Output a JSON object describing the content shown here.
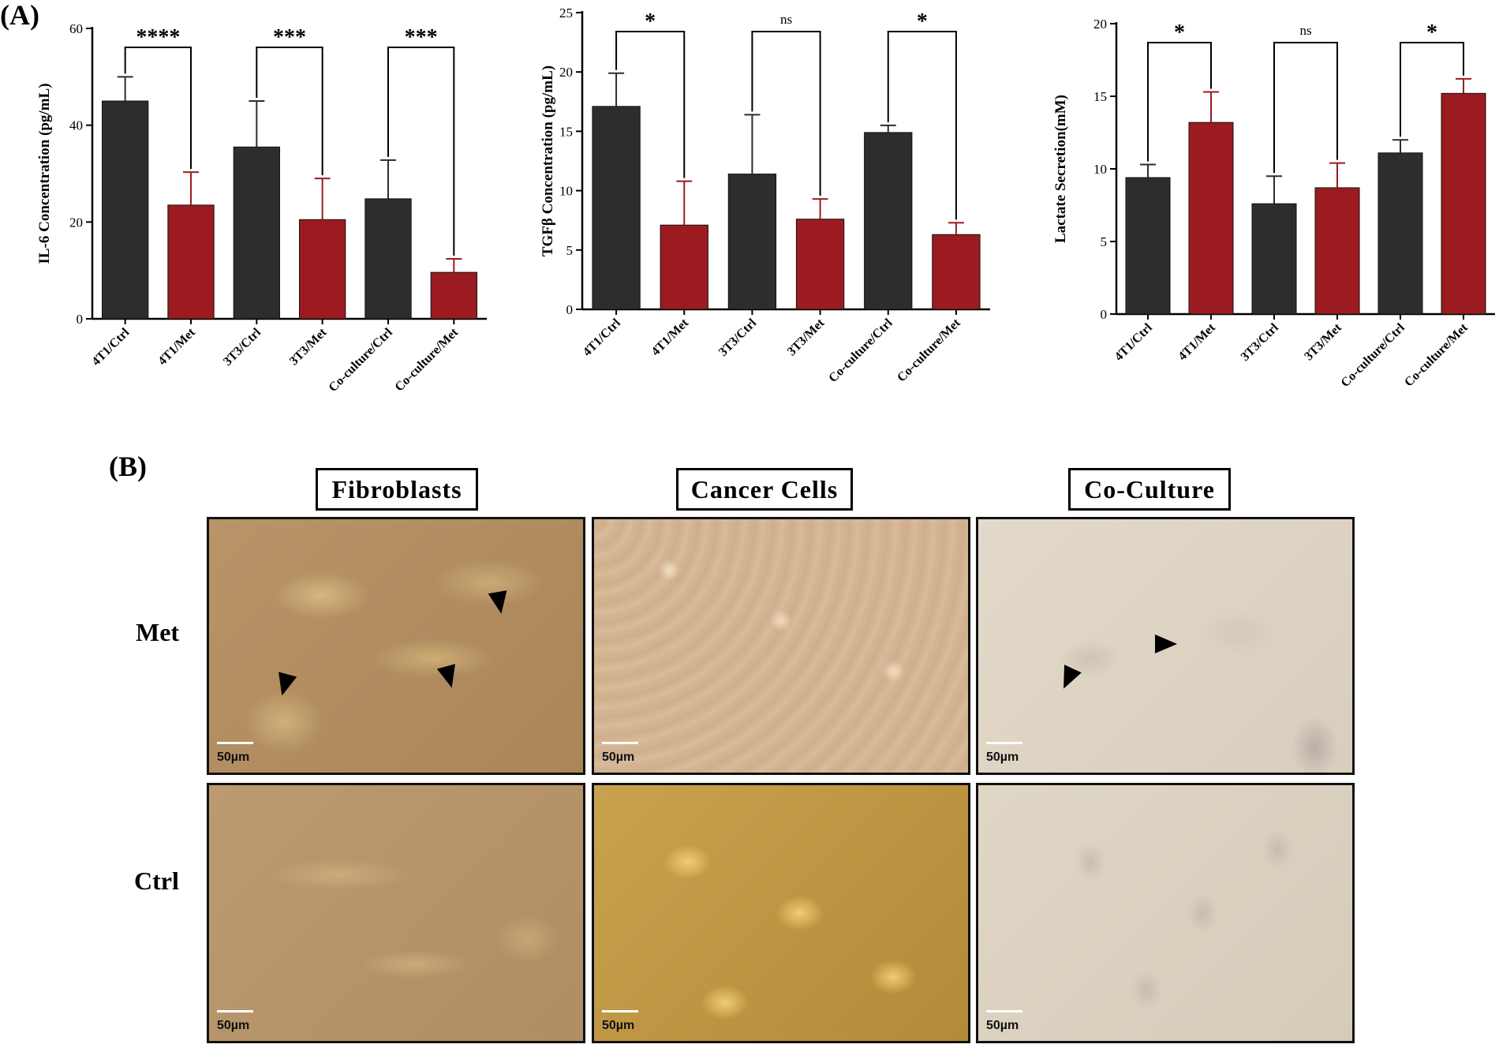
{
  "panel_a_label": "(A)",
  "panel_b_label": "(B)",
  "colors": {
    "ctrl": "#2d2d2d",
    "met": "#9b1b20",
    "axis": "#000000"
  },
  "chart_data": [
    {
      "type": "bar",
      "title": "",
      "xlabel": "",
      "ylabel": "IL-6 Concentration (pg/mL)",
      "ylim": [
        0,
        60
      ],
      "yticks": [
        0,
        20,
        40,
        60
      ],
      "categories": [
        "4T1/Ctrl",
        "4T1/Met",
        "3T3/Ctrl",
        "3T3/Met",
        "Co-culture/Ctrl",
        "Co-culture/Met"
      ],
      "values": [
        45,
        23.5,
        35.5,
        20.5,
        24.8,
        9.6
      ],
      "errors": [
        5,
        6.8,
        9.5,
        8.5,
        8,
        2.8
      ],
      "bar_colors": [
        "ctrl",
        "met",
        "ctrl",
        "met",
        "ctrl",
        "met"
      ],
      "comparisons": [
        {
          "pair": [
            0,
            1
          ],
          "label": "****"
        },
        {
          "pair": [
            2,
            3
          ],
          "label": "***"
        },
        {
          "pair": [
            4,
            5
          ],
          "label": "***"
        }
      ]
    },
    {
      "type": "bar",
      "title": "",
      "xlabel": "",
      "ylabel": "TGFβ Concentration (pg/mL)",
      "ylim": [
        0,
        25
      ],
      "yticks": [
        0,
        5,
        10,
        15,
        20,
        25
      ],
      "categories": [
        "4T1/Ctrl",
        "4T1/Met",
        "3T3/Ctrl",
        "3T3/Met",
        "Co-culture/Ctrl",
        "Co-culture/Met"
      ],
      "values": [
        17.1,
        7.1,
        11.4,
        7.6,
        14.9,
        6.3
      ],
      "errors": [
        2.8,
        3.7,
        5,
        1.7,
        0.6,
        1
      ],
      "bar_colors": [
        "ctrl",
        "met",
        "ctrl",
        "met",
        "ctrl",
        "met"
      ],
      "comparisons": [
        {
          "pair": [
            0,
            1
          ],
          "label": "*"
        },
        {
          "pair": [
            2,
            3
          ],
          "label": "ns"
        },
        {
          "pair": [
            4,
            5
          ],
          "label": "*"
        }
      ]
    },
    {
      "type": "bar",
      "title": "",
      "xlabel": "",
      "ylabel": "Lactate Secretion(mM)",
      "ylim": [
        0,
        20
      ],
      "yticks": [
        0,
        5,
        10,
        15,
        20
      ],
      "categories": [
        "4T1/Ctrl",
        "4T1/Met",
        "3T3/Ctrl",
        "3T3/Met",
        "Co-culture/Ctrl",
        "Co-culture/Met"
      ],
      "values": [
        9.4,
        13.2,
        7.6,
        8.7,
        11.1,
        15.2
      ],
      "errors": [
        0.9,
        2.1,
        1.9,
        1.7,
        0.9,
        1
      ],
      "bar_colors": [
        "ctrl",
        "met",
        "ctrl",
        "met",
        "ctrl",
        "met"
      ],
      "comparisons": [
        {
          "pair": [
            0,
            1
          ],
          "label": "*"
        },
        {
          "pair": [
            2,
            3
          ],
          "label": "ns"
        },
        {
          "pair": [
            4,
            5
          ],
          "label": "*"
        }
      ]
    }
  ],
  "micrographs": {
    "columns": [
      "Fibroblasts",
      "Cancer Cells",
      "Co-Culture"
    ],
    "rows": [
      "Met",
      "Ctrl"
    ],
    "scale_bar_label": "50µm"
  }
}
